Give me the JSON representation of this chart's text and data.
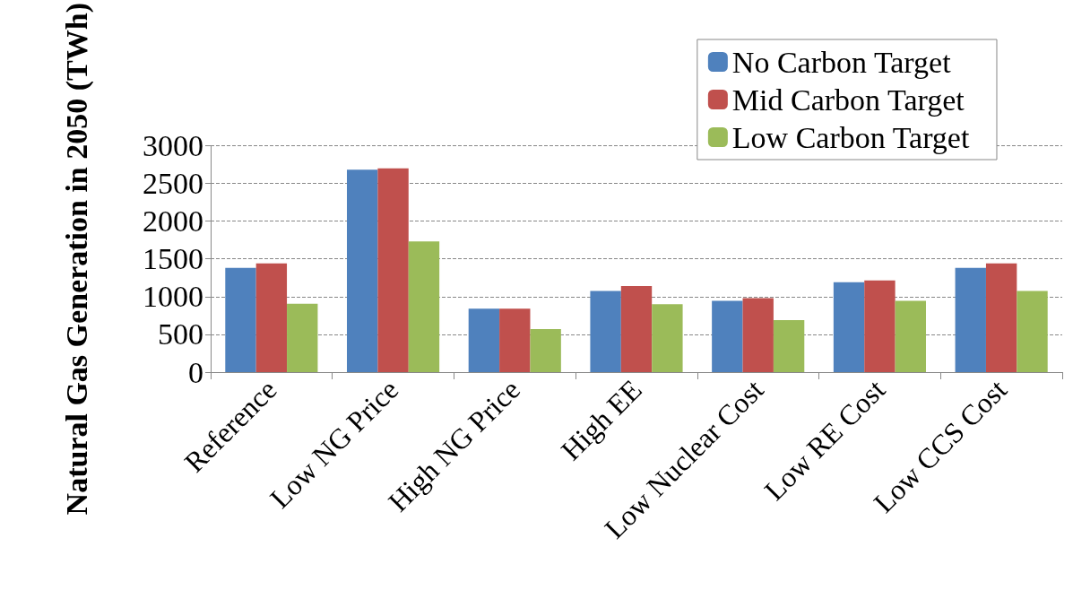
{
  "chart_data": {
    "type": "bar",
    "ylabel": "Natural Gas Generation in 2050 (TWh)",
    "categories": [
      "Reference",
      "Low NG Price",
      "High NG Price",
      "High EE",
      "Low Nuclear Cost",
      "Low RE Cost",
      "Low CCS Cost"
    ],
    "series": [
      {
        "name": "No Carbon Target",
        "color": "#4f81bd",
        "values": [
          1380,
          2680,
          840,
          1075,
          945,
          1190,
          1380
        ]
      },
      {
        "name": "Mid Carbon Target",
        "color": "#c0504d",
        "values": [
          1440,
          2700,
          840,
          1140,
          980,
          1215,
          1440
        ]
      },
      {
        "name": "Low Carbon Target",
        "color": "#9bbb59",
        "values": [
          905,
          1730,
          570,
          900,
          690,
          945,
          1075
        ]
      }
    ],
    "ylim": [
      0,
      3000
    ],
    "yticks": [
      0,
      500,
      1000,
      1500,
      2000,
      2500,
      3000
    ],
    "grid": "y",
    "legend": "top right"
  }
}
